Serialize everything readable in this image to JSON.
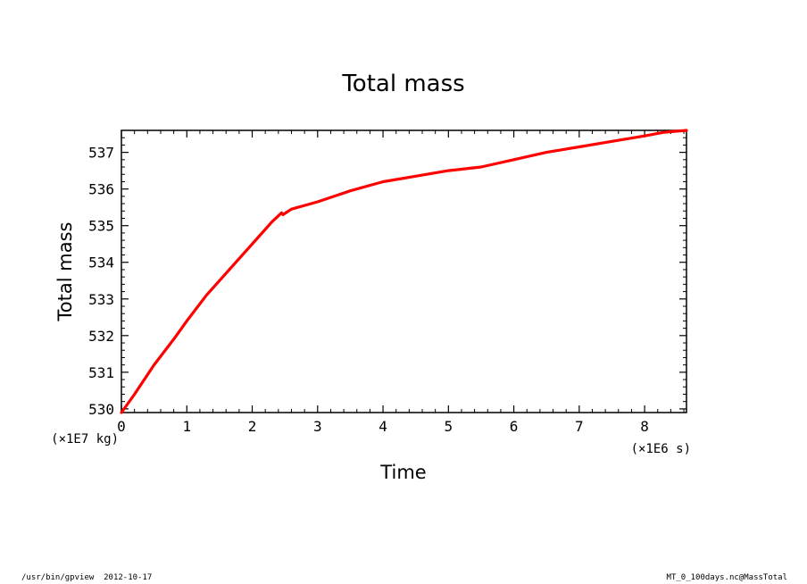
{
  "chart_data": {
    "type": "line",
    "title": "Total mass",
    "xlabel": "Time",
    "ylabel": "Total mass",
    "x_unit": "(×1E6 s)",
    "y_unit": "(×1E7 kg)",
    "xlim": [
      0,
      8.64
    ],
    "ylim": [
      529.9,
      537.6
    ],
    "x_ticks": [
      0,
      1,
      2,
      3,
      4,
      5,
      6,
      7,
      8
    ],
    "y_ticks": [
      530,
      531,
      532,
      533,
      534,
      535,
      536,
      537
    ],
    "grid": false,
    "line_color": "#ff0000",
    "series": [
      {
        "x": [
          0,
          0.2,
          0.5,
          0.8,
          1.0,
          1.3,
          1.6,
          1.9,
          2.1,
          2.3,
          2.45,
          2.47,
          2.6,
          3.0,
          3.5,
          4.0,
          4.5,
          5.0,
          5.5,
          6.0,
          6.5,
          7.0,
          7.5,
          8.0,
          8.3,
          8.64
        ],
        "y": [
          529.9,
          530.4,
          531.2,
          531.9,
          532.4,
          533.1,
          533.7,
          534.3,
          534.7,
          535.1,
          535.35,
          535.3,
          535.45,
          535.65,
          535.95,
          536.2,
          536.35,
          536.5,
          536.6,
          536.8,
          537.0,
          537.15,
          537.3,
          537.45,
          537.55,
          537.6
        ]
      }
    ]
  },
  "footer": {
    "left": "/usr/bin/gpview  2012-10-17",
    "right": "MT_0_100days.nc@MassTotal"
  }
}
